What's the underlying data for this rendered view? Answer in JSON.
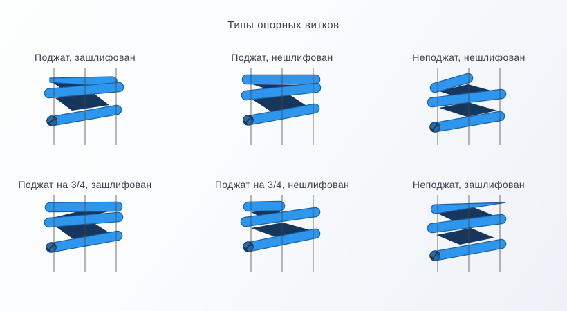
{
  "title": "Типы опорных витков",
  "cells": [
    {
      "label": "Поджат, зашлифован",
      "variant": "pressed-ground"
    },
    {
      "label": "Поджат, нешлифован",
      "variant": "pressed-unground"
    },
    {
      "label": "Неподжат, нешлифован",
      "variant": "unpressed-unground"
    },
    {
      "label": "Поджат на 3/4, зашлифован",
      "variant": "pressed-3-4-ground"
    },
    {
      "label": "Поджат на 3/4, нешлифован",
      "variant": "pressed-3-4-unground"
    },
    {
      "label": "Неподжат, зашлифован",
      "variant": "unpressed-ground"
    }
  ],
  "colors": {
    "coil_blue": "#2E96EC",
    "coil_outline": "#1A5FA4",
    "gap_navy": "#16365C",
    "wire_end_fill": "#2B6AA8",
    "wire_end_hatch": "#102C4A",
    "guide_line": "#41464E",
    "text": "#3C434E"
  }
}
